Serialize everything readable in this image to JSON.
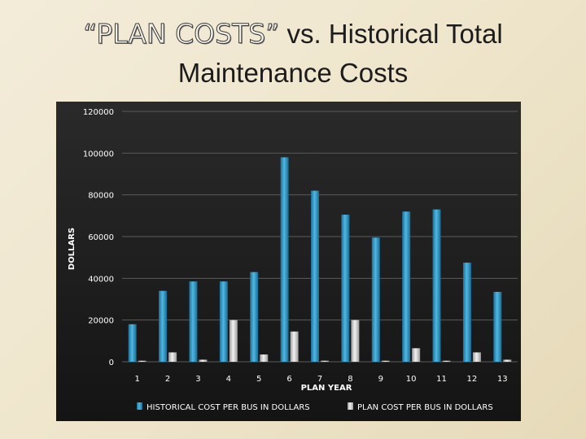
{
  "slide": {
    "title_quoted": "“PLAN COSTS”",
    "title_rest": " vs. Historical Total",
    "title_line2": "Maintenance Costs"
  },
  "chart_data": {
    "type": "bar",
    "title": "“PLAN COSTS” vs. Historical Total Maintenance Costs",
    "xlabel": "PLAN YEAR",
    "ylabel": "DOLLARS",
    "categories": [
      "1",
      "2",
      "3",
      "4",
      "5",
      "6",
      "7",
      "8",
      "9",
      "10",
      "11",
      "12",
      "13"
    ],
    "yticks": [
      "0",
      "20000",
      "40000",
      "60000",
      "80000",
      "100000",
      "120000"
    ],
    "ylim": [
      0,
      120000
    ],
    "grid": true,
    "legend": "bottom",
    "series": [
      {
        "name": "HISTORICAL COST PER BUS IN DOLLARS",
        "color": "#2e97c6",
        "values": [
          18000,
          34000,
          38500,
          38500,
          43000,
          98000,
          82000,
          70500,
          59500,
          72000,
          73000,
          47500,
          33500
        ]
      },
      {
        "name": "PLAN COST PER BUS IN DOLLARS",
        "color": "#d2d2d2",
        "values": [
          500,
          4500,
          1000,
          20000,
          3500,
          14500,
          500,
          20000,
          500,
          6500,
          500,
          4500,
          1000
        ]
      }
    ]
  }
}
